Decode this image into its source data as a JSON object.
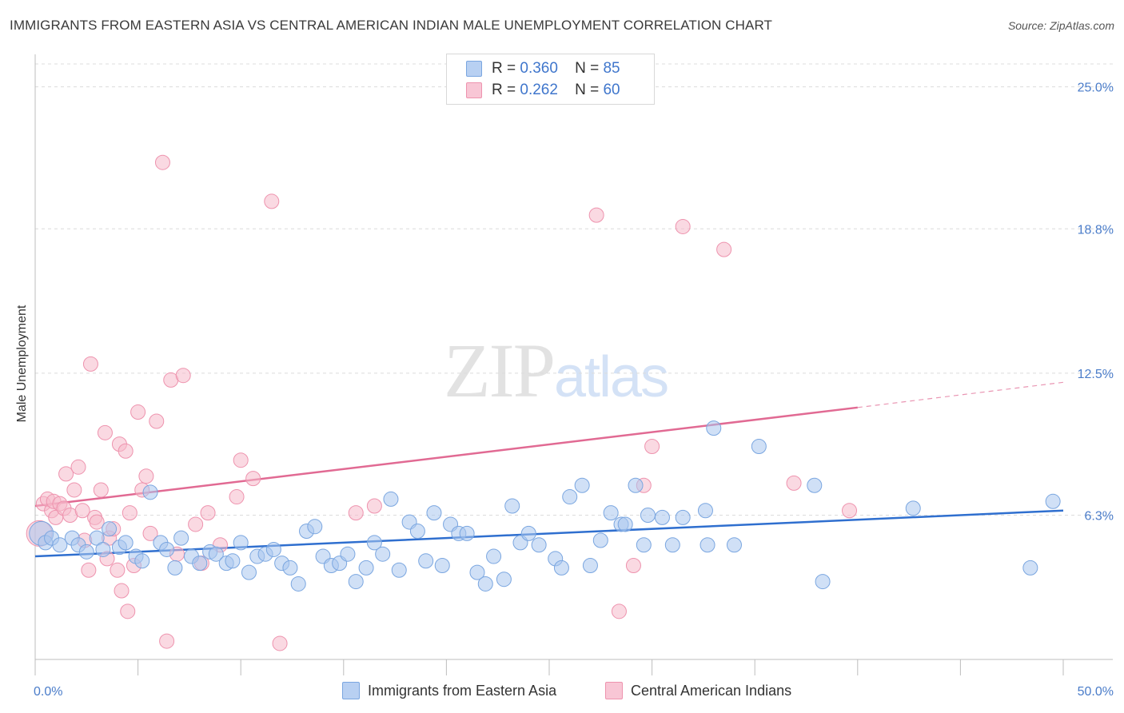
{
  "title": "IMMIGRANTS FROM EASTERN ASIA VS CENTRAL AMERICAN INDIAN MALE UNEMPLOYMENT CORRELATION CHART",
  "source": "Source: ZipAtlas.com",
  "watermark": {
    "zip": "ZIP",
    "atlas": "atlas"
  },
  "colors": {
    "blue_fill": "#a9c6ef",
    "blue_stroke": "#7aa6e0",
    "blue_line": "#2f6fcf",
    "pink_fill": "#f6b9cb",
    "pink_stroke": "#ee93ae",
    "pink_line": "#e16a93",
    "axis_text": "#4a7cc9",
    "grid": "#dcdcdc"
  },
  "legend": {
    "rows": [
      {
        "r_label": "R =",
        "r_value": "0.360",
        "n_label": "N =",
        "n_value": "85"
      },
      {
        "r_label": "R =",
        "r_value": "0.262",
        "n_label": "N =",
        "n_value": "60"
      }
    ]
  },
  "bottom_legend": {
    "series1": "Immigrants from Eastern Asia",
    "series2": "Central American Indians"
  },
  "chart_data": {
    "type": "scatter",
    "xlabel": "",
    "ylabel": "Male Unemployment",
    "xlim": [
      0,
      50
    ],
    "ylim": [
      0,
      26
    ],
    "x_tick_labels": [
      {
        "value": 0,
        "label": "0.0%"
      },
      {
        "value": 50,
        "label": "50.0%"
      }
    ],
    "y_tick_labels": [
      {
        "value": 6.3,
        "label": "6.3%"
      },
      {
        "value": 12.5,
        "label": "12.5%"
      },
      {
        "value": 18.8,
        "label": "18.8%"
      },
      {
        "value": 25.0,
        "label": "25.0%"
      }
    ],
    "grid": true,
    "series": [
      {
        "name": "Immigrants from Eastern Asia",
        "r": 0.36,
        "n": 85,
        "trend": {
          "x0": 0,
          "y0": 4.5,
          "x1": 50,
          "y1": 6.5
        },
        "points": [
          [
            0.3,
            5.5
          ],
          [
            0.5,
            5.1
          ],
          [
            0.8,
            5.3
          ],
          [
            1.2,
            5.0
          ],
          [
            1.8,
            5.3
          ],
          [
            2.1,
            5.0
          ],
          [
            2.5,
            4.7
          ],
          [
            3.0,
            5.3
          ],
          [
            3.3,
            4.8
          ],
          [
            3.6,
            5.7
          ],
          [
            4.1,
            4.9
          ],
          [
            4.4,
            5.1
          ],
          [
            4.9,
            4.5
          ],
          [
            5.2,
            4.3
          ],
          [
            5.6,
            7.3
          ],
          [
            6.1,
            5.1
          ],
          [
            6.4,
            4.8
          ],
          [
            6.8,
            4.0
          ],
          [
            7.1,
            5.3
          ],
          [
            7.6,
            4.5
          ],
          [
            8.0,
            4.2
          ],
          [
            8.5,
            4.7
          ],
          [
            8.8,
            4.6
          ],
          [
            9.3,
            4.2
          ],
          [
            9.6,
            4.3
          ],
          [
            10.0,
            5.1
          ],
          [
            10.4,
            3.8
          ],
          [
            10.8,
            4.5
          ],
          [
            11.2,
            4.6
          ],
          [
            11.6,
            4.8
          ],
          [
            12.0,
            4.2
          ],
          [
            12.4,
            4.0
          ],
          [
            12.8,
            3.3
          ],
          [
            13.2,
            5.6
          ],
          [
            13.6,
            5.8
          ],
          [
            14.0,
            4.5
          ],
          [
            14.4,
            4.1
          ],
          [
            14.8,
            4.2
          ],
          [
            15.2,
            4.6
          ],
          [
            15.6,
            3.4
          ],
          [
            16.1,
            4.0
          ],
          [
            16.5,
            5.1
          ],
          [
            16.9,
            4.6
          ],
          [
            17.3,
            7.0
          ],
          [
            17.7,
            3.9
          ],
          [
            18.2,
            6.0
          ],
          [
            18.6,
            5.6
          ],
          [
            19.0,
            4.3
          ],
          [
            19.4,
            6.4
          ],
          [
            19.8,
            4.1
          ],
          [
            20.2,
            5.9
          ],
          [
            20.6,
            5.5
          ],
          [
            21.0,
            5.5
          ],
          [
            21.5,
            3.8
          ],
          [
            21.9,
            3.3
          ],
          [
            22.3,
            4.5
          ],
          [
            22.8,
            3.5
          ],
          [
            23.2,
            6.7
          ],
          [
            23.6,
            5.1
          ],
          [
            24.0,
            5.5
          ],
          [
            24.5,
            5.0
          ],
          [
            25.3,
            4.4
          ],
          [
            25.6,
            4.0
          ],
          [
            26.0,
            7.1
          ],
          [
            26.6,
            7.6
          ],
          [
            27.0,
            4.1
          ],
          [
            27.5,
            5.2
          ],
          [
            28.0,
            6.4
          ],
          [
            28.5,
            5.9
          ],
          [
            28.7,
            5.9
          ],
          [
            29.2,
            7.6
          ],
          [
            29.6,
            5.0
          ],
          [
            29.8,
            6.3
          ],
          [
            30.5,
            6.2
          ],
          [
            31.0,
            5.0
          ],
          [
            31.5,
            6.2
          ],
          [
            32.6,
            6.5
          ],
          [
            32.7,
            5.0
          ],
          [
            33.0,
            10.1
          ],
          [
            34.0,
            5.0
          ],
          [
            35.2,
            9.3
          ],
          [
            37.9,
            7.6
          ],
          [
            38.3,
            3.4
          ],
          [
            42.7,
            6.6
          ],
          [
            48.4,
            4.0
          ],
          [
            49.5,
            6.9
          ]
        ]
      },
      {
        "name": "Central American Indians",
        "r": 0.262,
        "n": 60,
        "trend": {
          "x0": 0,
          "y0": 6.7,
          "x1": 40,
          "y1": 11.0,
          "dash_x1": 50,
          "dash_y1": 12.1
        },
        "points": [
          [
            0.2,
            5.5
          ],
          [
            0.4,
            6.8
          ],
          [
            0.6,
            7.0
          ],
          [
            0.8,
            6.5
          ],
          [
            0.9,
            6.9
          ],
          [
            1.0,
            6.2
          ],
          [
            1.2,
            6.8
          ],
          [
            1.4,
            6.6
          ],
          [
            1.5,
            8.1
          ],
          [
            1.7,
            6.3
          ],
          [
            1.9,
            7.4
          ],
          [
            2.1,
            8.4
          ],
          [
            2.3,
            6.5
          ],
          [
            2.4,
            5.2
          ],
          [
            2.6,
            3.9
          ],
          [
            2.7,
            12.9
          ],
          [
            2.9,
            6.2
          ],
          [
            3.0,
            6.0
          ],
          [
            3.2,
            7.4
          ],
          [
            3.4,
            9.9
          ],
          [
            3.5,
            4.4
          ],
          [
            3.6,
            5.3
          ],
          [
            3.8,
            5.7
          ],
          [
            4.0,
            3.9
          ],
          [
            4.1,
            9.4
          ],
          [
            4.2,
            3.0
          ],
          [
            4.4,
            9.1
          ],
          [
            4.5,
            2.1
          ],
          [
            4.6,
            6.4
          ],
          [
            4.8,
            4.1
          ],
          [
            5.0,
            10.8
          ],
          [
            5.2,
            7.4
          ],
          [
            5.4,
            8.0
          ],
          [
            5.6,
            5.5
          ],
          [
            5.9,
            10.4
          ],
          [
            6.2,
            21.7
          ],
          [
            6.4,
            0.8
          ],
          [
            6.6,
            12.2
          ],
          [
            6.9,
            4.6
          ],
          [
            7.2,
            12.4
          ],
          [
            7.8,
            5.9
          ],
          [
            8.1,
            4.2
          ],
          [
            8.4,
            6.4
          ],
          [
            9.0,
            5.0
          ],
          [
            9.8,
            7.1
          ],
          [
            10.0,
            8.7
          ],
          [
            10.6,
            7.9
          ],
          [
            11.5,
            20.0
          ],
          [
            11.9,
            0.7
          ],
          [
            15.6,
            6.4
          ],
          [
            16.5,
            6.7
          ],
          [
            27.3,
            19.4
          ],
          [
            28.4,
            2.1
          ],
          [
            29.1,
            4.1
          ],
          [
            29.6,
            7.6
          ],
          [
            30.0,
            9.3
          ],
          [
            31.5,
            18.9
          ],
          [
            33.5,
            17.9
          ],
          [
            36.9,
            7.7
          ],
          [
            39.6,
            6.5
          ]
        ]
      }
    ]
  }
}
